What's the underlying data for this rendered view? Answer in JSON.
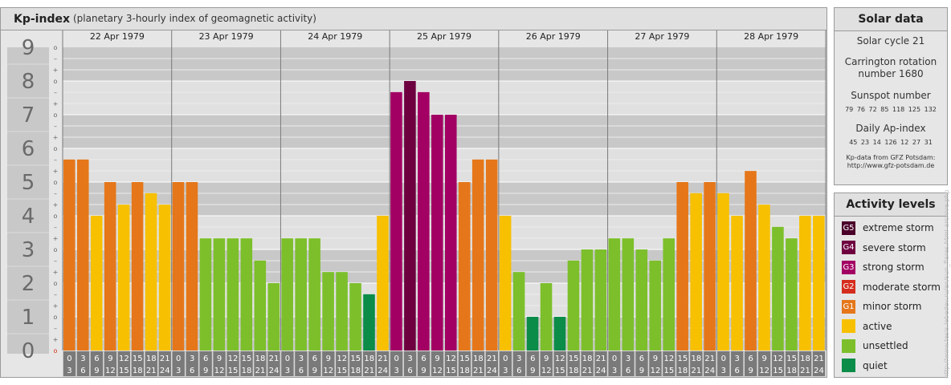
{
  "header": {
    "title": "Kp-index",
    "subtitle": "(planetary 3-hourly index of geomagnetic activity)"
  },
  "chart_data": {
    "type": "bar",
    "ylim": [
      0,
      9
    ],
    "y_ticks": [
      "0",
      "1",
      "2",
      "3",
      "4",
      "5",
      "6",
      "7",
      "8",
      "9"
    ],
    "thirds_labels": [
      "o",
      "+",
      "–"
    ],
    "days": [
      "22 Apr 1979",
      "23 Apr 1979",
      "24 Apr 1979",
      "25 Apr 1979",
      "26 Apr 1979",
      "27 Apr 1979",
      "28 Apr 1979"
    ],
    "interval_start": [
      "0",
      "3",
      "6",
      "9",
      "12",
      "15",
      "18",
      "21"
    ],
    "interval_end": [
      "3",
      "6",
      "9",
      "12",
      "15",
      "18",
      "21",
      "24"
    ],
    "values": [
      5.67,
      5.67,
      4.0,
      5.0,
      4.33,
      5.0,
      4.67,
      4.33,
      5.0,
      5.0,
      3.33,
      3.33,
      3.33,
      3.33,
      2.67,
      2.0,
      3.33,
      3.33,
      3.33,
      2.33,
      2.33,
      2.0,
      1.67,
      4.0,
      7.67,
      8.0,
      7.67,
      7.0,
      7.0,
      5.0,
      5.67,
      5.67,
      4.0,
      2.33,
      1.0,
      2.0,
      1.0,
      2.67,
      3.0,
      3.0,
      3.33,
      3.33,
      3.0,
      2.67,
      3.33,
      5.0,
      4.67,
      5.0,
      4.67,
      4.0,
      5.33,
      4.33,
      3.67,
      3.33,
      4.0,
      4.0
    ],
    "grid": true
  },
  "solar": {
    "title": "Solar data",
    "cycle": "Solar cycle 21",
    "rotation_line1": "Carrington rotation",
    "rotation_line2": "number 1680",
    "sunspot_title": "Sunspot number",
    "sunspot_values": "79 76 72 85 118 125 132",
    "ap_title": "Daily Ap-index",
    "ap_values": "45 23 14 126 12 27 31",
    "credit_line1": "Kp-data from GFZ Potsdam:",
    "credit_line2": "http://www.gfz-potsdam.de"
  },
  "activity": {
    "title": "Activity levels",
    "levels": [
      {
        "badge": "G5",
        "label": "extreme storm",
        "color": "#4a0029"
      },
      {
        "badge": "G4",
        "label": "severe storm",
        "color": "#6e0040"
      },
      {
        "badge": "G3",
        "label": "strong storm",
        "color": "#a30063"
      },
      {
        "badge": "G2",
        "label": "moderate storm",
        "color": "#d52d1d"
      },
      {
        "badge": "G1",
        "label": "minor storm",
        "color": "#e5771a"
      },
      {
        "badge": "",
        "label": "active",
        "color": "#f7c000"
      },
      {
        "badge": "",
        "label": "unsettled",
        "color": "#7cbf2b"
      },
      {
        "badge": "",
        "label": "quiet",
        "color": "#0b8c48"
      }
    ]
  },
  "watermark": "http://www.tesis.lebedev.ru/en/sun_flares.html  archive.php"
}
